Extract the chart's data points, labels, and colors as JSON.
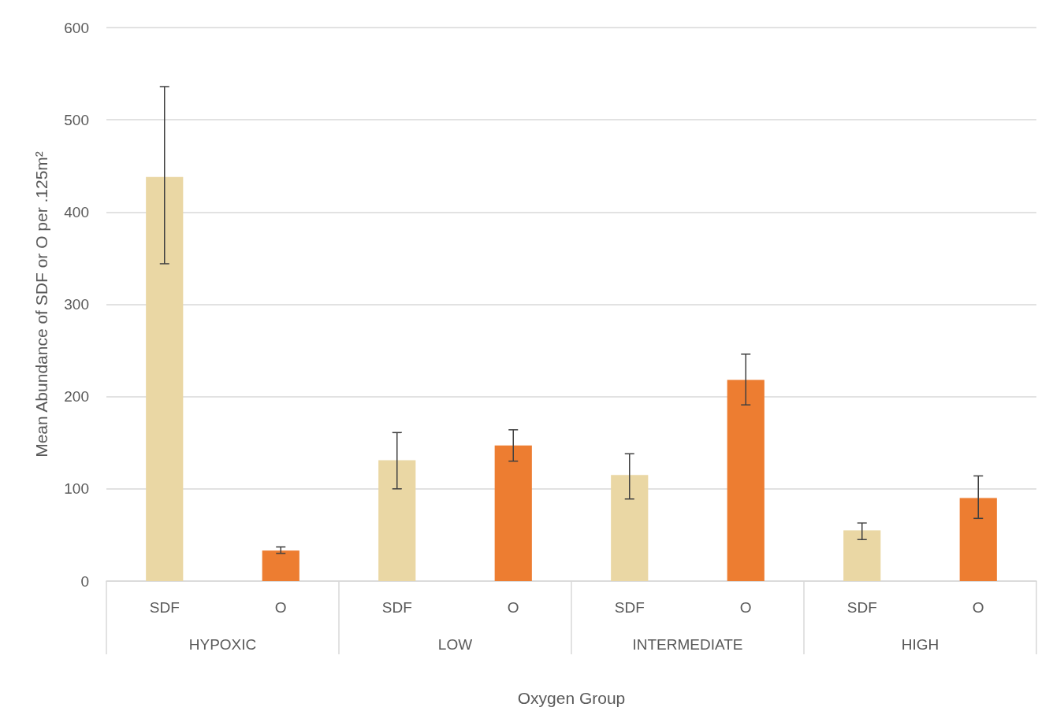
{
  "chart_data": {
    "type": "bar",
    "categories": [
      "SDF",
      "O",
      "SDF",
      "O",
      "SDF",
      "O",
      "SDF",
      "O"
    ],
    "values": [
      438,
      33,
      131,
      147,
      115,
      218,
      55,
      90
    ],
    "colors": [
      "#ead7a4",
      "#ed7d31",
      "#ead7a4",
      "#ed7d31",
      "#ead7a4",
      "#ed7d31",
      "#ead7a4",
      "#ed7d31"
    ],
    "errors": [
      [
        344,
        536
      ],
      [
        30,
        37
      ],
      [
        100,
        161
      ],
      [
        130,
        164
      ],
      [
        89,
        138
      ],
      [
        191,
        246
      ],
      [
        45,
        63
      ],
      [
        68,
        114
      ]
    ],
    "xlabel": "Oxygen Group",
    "ylabel": "Mean Abundance of SDF or O per .125m²",
    "annotations": [
      "HYPOXIC",
      "LOW",
      "INTERMEDIATE",
      "HIGH"
    ],
    "ylim": [
      0,
      600
    ],
    "yticks": [
      0,
      100,
      200,
      300,
      400,
      500,
      600
    ],
    "grid": "y"
  }
}
